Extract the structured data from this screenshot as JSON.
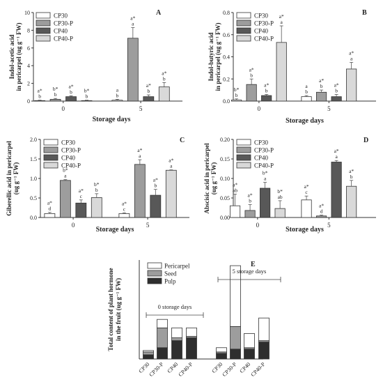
{
  "figure": {
    "series_colors": {
      "CP30": "#ffffff",
      "CP30-P": "#9d9d9d",
      "CP40": "#585858",
      "CP40-P": "#d9d9d9"
    },
    "stack_colors": {
      "Pericarpel": "#ffffff",
      "Seed": "#9d9d9d",
      "Pulp": "#2e2e2e"
    }
  },
  "chart_data": [
    {
      "panel": "A",
      "type": "bar",
      "ylabel": "Indol-acetic acid in pericarpel (ug g-1 FW)",
      "ylabel_lines": [
        "Indol-acetic acid",
        "in pericarpel (ug g⁻¹ FW)"
      ],
      "xlabel": "",
      "categories": [
        "0",
        "5"
      ],
      "ylim": [
        0,
        10
      ],
      "yticks": [
        "0",
        "2",
        "4",
        "6",
        "8",
        "10"
      ],
      "series": [
        {
          "name": "CP30",
          "values": [
            0.05,
            0.1
          ],
          "errors": [
            0.05,
            0.1
          ],
          "labels": [
            [
              "a*",
              "b"
            ],
            [
              "a",
              "b"
            ]
          ]
        },
        {
          "name": "CP30-P",
          "values": [
            0.2,
            7.1
          ],
          "errors": [
            0.1,
            1.2
          ],
          "labels": [
            [
              "b*",
              "b"
            ],
            [
              "a*",
              "a"
            ]
          ]
        },
        {
          "name": "CP40",
          "values": [
            0.5,
            0.5
          ],
          "errors": [
            0.1,
            0.2
          ],
          "labels": [
            [
              "a*",
              "b"
            ],
            [
              "a*",
              "b"
            ]
          ]
        },
        {
          "name": "CP40-P",
          "values": [
            0.05,
            1.6
          ],
          "errors": [
            0.05,
            0.5
          ],
          "labels": [
            [
              "b*",
              "b"
            ],
            [
              "a*",
              "b"
            ]
          ]
        }
      ],
      "legend": [
        "CP30",
        "CP30-P",
        "CP40",
        "CP40-P"
      ],
      "legend_position": "top-left"
    },
    {
      "panel": "B",
      "type": "bar",
      "ylabel": "Indol-butyric acid in pericarpel (ug g-1 FW)",
      "ylabel_lines": [
        "Indol-butyric acid",
        "in pericarpel (ug g⁻¹ FW)"
      ],
      "xlabel": "Storage days",
      "categories": [
        "0",
        "5"
      ],
      "ylim": [
        0,
        0.8
      ],
      "yticks": [
        "0.0",
        "0.2",
        "0.4",
        "0.6",
        "0.8"
      ],
      "series": [
        {
          "name": "CP30",
          "values": [
            0.01,
            0.04
          ],
          "errors": [
            0.01,
            0.01
          ],
          "labels": [
            [
              "b*",
              "b"
            ],
            [
              "a",
              "b"
            ]
          ]
        },
        {
          "name": "CP30-P",
          "values": [
            0.15,
            0.08
          ],
          "errors": [
            0.05,
            0.02
          ],
          "labels": [
            [
              "a*",
              "b"
            ],
            [
              "a*",
              "b"
            ]
          ]
        },
        {
          "name": "CP40",
          "values": [
            0.05,
            0.04
          ],
          "errors": [
            0.01,
            0.02
          ],
          "labels": [
            [
              "a*",
              "b"
            ],
            [
              "a*",
              "b"
            ]
          ]
        },
        {
          "name": "CP40-P",
          "values": [
            0.53,
            0.29
          ],
          "errors": [
            0.15,
            0.06
          ],
          "labels": [
            [
              "a*",
              "a"
            ],
            [
              "a*",
              "a"
            ]
          ]
        }
      ],
      "legend": [
        "CP30",
        "CP30-P",
        "CP40",
        "CP40-P"
      ],
      "legend_position": "top-left"
    },
    {
      "panel": "C",
      "type": "bar",
      "ylabel": "Giberellic acid in pericarpel (ug g-1 FW)",
      "ylabel_lines": [
        "Giberellic acid in pericarpel",
        "(ug g⁻¹ FW)"
      ],
      "xlabel": "Storage days",
      "categories": [
        "0",
        "5"
      ],
      "ylim": [
        0,
        2.0
      ],
      "yticks": [
        "0.0",
        "0.5",
        "1.0",
        "1.5",
        "2.0"
      ],
      "series": [
        {
          "name": "CP30",
          "values": [
            0.1,
            0.1
          ],
          "errors": [
            0.03,
            0.02
          ],
          "labels": [
            [
              "a*",
              "d"
            ],
            [
              "a*",
              "c"
            ]
          ]
        },
        {
          "name": "CP30-P",
          "values": [
            0.95,
            1.36
          ],
          "errors": [
            0.02,
            0.12
          ],
          "labels": [
            [
              "b*",
              "a"
            ],
            [
              "a*",
              "a"
            ]
          ]
        },
        {
          "name": "CP40",
          "values": [
            0.37,
            0.57
          ],
          "errors": [
            0.08,
            0.15
          ],
          "labels": [
            [
              "a*",
              "c"
            ],
            [
              "a*",
              "b"
            ]
          ]
        },
        {
          "name": "CP40-P",
          "values": [
            0.51,
            1.21
          ],
          "errors": [
            0.1,
            0.01
          ],
          "labels": [
            [
              "b*",
              "b"
            ],
            [
              "a*",
              "a"
            ]
          ]
        }
      ],
      "legend": [
        "CP30",
        "CP30-P",
        "CP40",
        "CP40-P"
      ],
      "legend_position": "top-left"
    },
    {
      "panel": "D",
      "type": "bar",
      "ylabel": "Abscisic acid in pericarpel (ug g-1 FW)",
      "ylabel_lines": [
        "Abscisic acid in pericarpel",
        "(ug g⁻¹ FW)"
      ],
      "xlabel": "Storage days",
      "categories": [
        "0",
        "5"
      ],
      "ylim": [
        0,
        0.2
      ],
      "yticks": [
        "0.00",
        "0.05",
        "0.10",
        "0.15",
        "0.20"
      ],
      "series": [
        {
          "name": "CP30",
          "values": [
            0.03,
            0.045
          ],
          "errors": [
            0.03,
            0.01
          ],
          "labels": [
            [
              "a*",
              "ab"
            ],
            [
              "a*",
              "c"
            ]
          ]
        },
        {
          "name": "CP30-P",
          "values": [
            0.018,
            0.004
          ],
          "errors": [
            0.015,
            0.002
          ],
          "labels": [
            [
              "a*",
              "b"
            ],
            [
              "a*",
              "d"
            ]
          ]
        },
        {
          "name": "CP40",
          "values": [
            0.075,
            0.142
          ],
          "errors": [
            0.015,
            0.004
          ],
          "labels": [
            [
              "b*",
              "a"
            ],
            [
              "a*",
              "a"
            ]
          ]
        },
        {
          "name": "CP40-P",
          "values": [
            0.023,
            0.08
          ],
          "errors": [
            0.02,
            0.015
          ],
          "labels": [
            [
              "b*",
              "ab"
            ],
            [
              "a*",
              "b"
            ]
          ]
        }
      ],
      "legend": [
        "CP30",
        "CP30-P",
        "CP40",
        "CP40-P"
      ],
      "legend_position": "top-left"
    },
    {
      "panel": "E",
      "type": "bar",
      "stacked": true,
      "ylabel": "Total content of plant hormone in the fruit (ug g-1 FW)",
      "ylabel_lines": [
        "Total content of plant hormone",
        "in the fruit (ug g⁻¹ FW)"
      ],
      "ylim": [
        0,
        3.5
      ],
      "groups": [
        {
          "label": "0 storage days",
          "categories": [
            "CP30",
            "CP30-P",
            "CP40",
            "CP40-P"
          ]
        },
        {
          "label": "5 storage days",
          "categories": [
            "CP30",
            "CP30-P",
            "CP40",
            "CP40-P"
          ]
        }
      ],
      "series": [
        {
          "name": "Pulp",
          "values": [
            0.15,
            0.4,
            0.65,
            0.75,
            0.2,
            0.35,
            0.35,
            0.6
          ]
        },
        {
          "name": "Seed",
          "values": [
            0.1,
            0.7,
            0.1,
            0.05,
            0.05,
            0.8,
            0.05,
            0.05
          ]
        },
        {
          "name": "Pericarpel",
          "values": [
            0.05,
            0.3,
            0.35,
            0.3,
            0.15,
            2.15,
            0.5,
            0.8
          ]
        }
      ],
      "legend": [
        "Pericarpel",
        "Seed",
        "Pulp"
      ],
      "legend_position": "top-left"
    }
  ]
}
